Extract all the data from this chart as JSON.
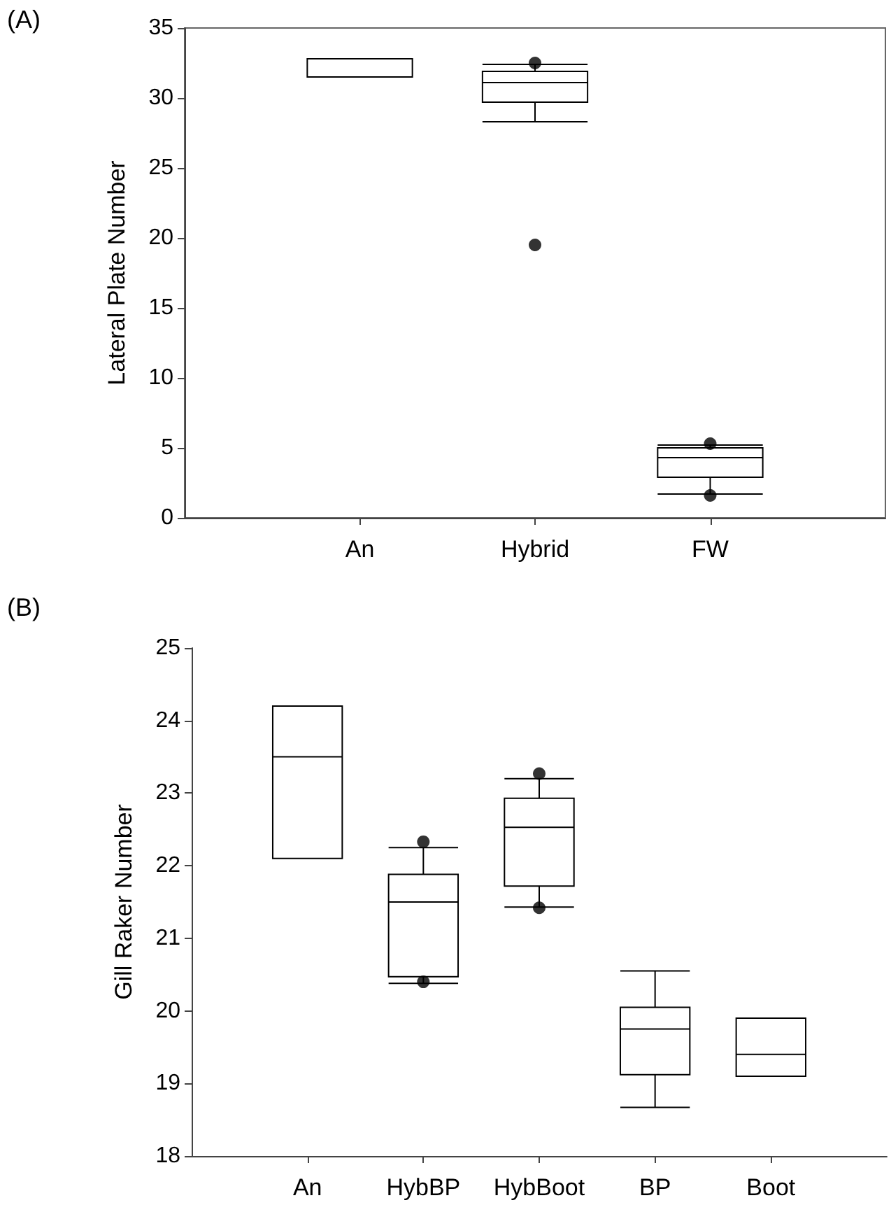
{
  "chart_data": [
    {
      "type": "box",
      "title": "(A)",
      "ylabel": "Lateral Plate Number",
      "categories": [
        "An",
        "Hybrid",
        "FW"
      ],
      "ylim": [
        0,
        35
      ],
      "yticks": [
        0,
        5,
        10,
        15,
        20,
        25,
        30,
        35
      ],
      "grid": false,
      "color": "#000000",
      "boxes": [
        {
          "low": 31.5,
          "q1": 31.5,
          "median": 31.5,
          "q3": 32.8,
          "high": 32.8
        },
        {
          "low": 28.3,
          "q1": 29.7,
          "median": 31.1,
          "q3": 31.9,
          "high": 32.4,
          "outliers": [
            32.5,
            19.5
          ]
        },
        {
          "low": 1.7,
          "q1": 2.9,
          "median": 4.3,
          "q3": 5.0,
          "high": 5.2,
          "outliers": [
            5.3,
            1.6
          ]
        }
      ]
    },
    {
      "type": "box",
      "title": "(B)",
      "ylabel": "Gill Raker Number",
      "categories": [
        "An",
        "HybBP",
        "HybBoot",
        "BP",
        "Boot"
      ],
      "ylim": [
        18,
        25
      ],
      "yticks": [
        18,
        19,
        20,
        21,
        22,
        23,
        24,
        25
      ],
      "grid": false,
      "color": "#000000",
      "boxes": [
        {
          "low": 22.1,
          "q1": 22.1,
          "median": 23.5,
          "q3": 24.2,
          "high": 24.2
        },
        {
          "low": 20.38,
          "q1": 20.47,
          "median": 21.5,
          "q3": 21.88,
          "high": 22.25,
          "outliers": [
            22.33,
            20.4
          ]
        },
        {
          "low": 21.43,
          "q1": 21.72,
          "median": 22.53,
          "q3": 22.93,
          "high": 23.2,
          "outliers": [
            23.27,
            21.42
          ]
        },
        {
          "low": 18.67,
          "q1": 19.12,
          "median": 19.75,
          "q3": 20.05,
          "high": 20.55
        },
        {
          "low": 19.1,
          "q1": 19.1,
          "median": 19.4,
          "q3": 19.9,
          "high": 19.9
        }
      ]
    }
  ]
}
